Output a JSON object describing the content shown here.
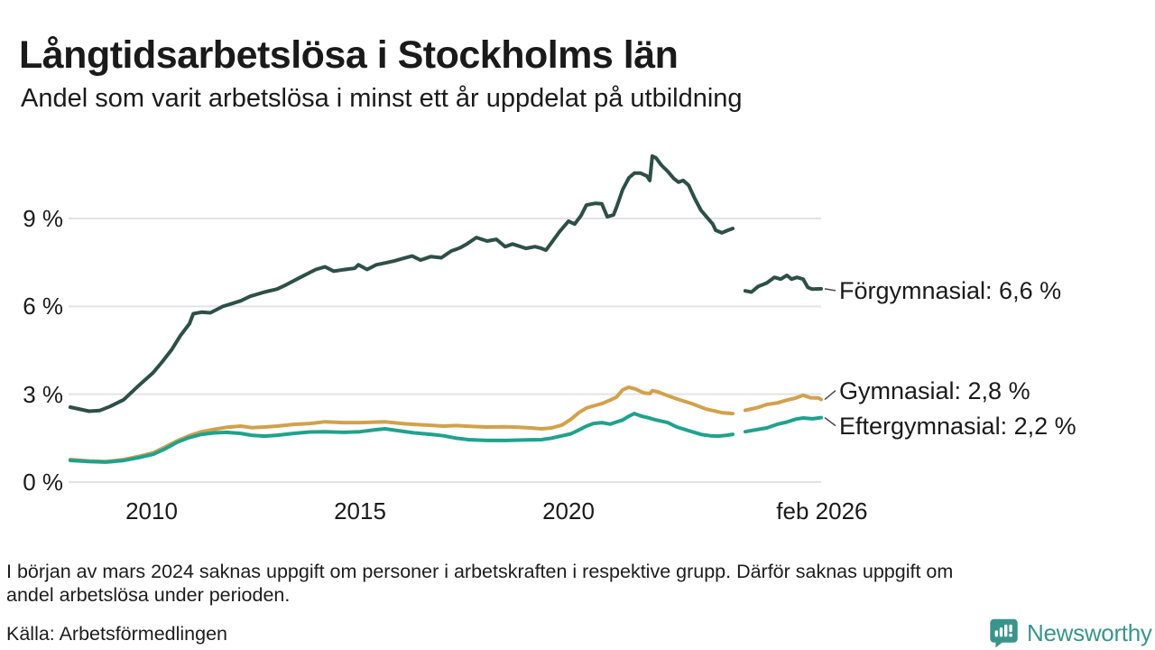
{
  "header": {
    "title": "Långtidsarbetslösa i Stockholms län",
    "subtitle": "Andel som varit arbetslösa i minst ett år uppdelat på utbildning"
  },
  "colors": {
    "grid": "#e3e3e6",
    "connector": "#4a4a4a",
    "text": "#1a1a1a",
    "logo_teal": "#3a948c"
  },
  "chart_data": {
    "type": "line",
    "title": "Långtidsarbetslösa i Stockholms län",
    "subtitle": "Andel som varit arbetslösa i minst ett år uppdelat på utbildning",
    "xlabel": "",
    "ylabel": "",
    "x_range": [
      2008.0,
      2026.08
    ],
    "y_range": [
      0,
      11.5
    ],
    "grid": "horizontal-only",
    "legend_position": "right-end-labels",
    "y_axis": {
      "unit": "%",
      "ticks": [
        {
          "value": 0,
          "label": "0 %"
        },
        {
          "value": 3,
          "label": "3 %"
        },
        {
          "value": 6,
          "label": "6 %"
        },
        {
          "value": 9,
          "label": "9 %"
        }
      ]
    },
    "x_axis": {
      "ticks": [
        {
          "value": 2010,
          "label": "2010"
        },
        {
          "value": 2015,
          "label": "2015"
        },
        {
          "value": 2020,
          "label": "2020"
        },
        {
          "value": 2026.08,
          "label": "feb 2026"
        }
      ]
    },
    "gap": {
      "from": 2024.0,
      "to": 2024.2,
      "reason": "data saknas från början av mars 2024"
    },
    "series": [
      {
        "id": "forgymnasial",
        "name": "Förgymnasial",
        "label": "Förgymnasial: 6,6 %",
        "latest_value": "6,6 %",
        "color": "#2d4f47",
        "segments": [
          [
            [
              2008.05,
              2.56
            ],
            [
              2008.3,
              2.48
            ],
            [
              2008.5,
              2.42
            ],
            [
              2008.75,
              2.44
            ],
            [
              2009.0,
              2.58
            ],
            [
              2009.33,
              2.81
            ],
            [
              2009.68,
              3.28
            ],
            [
              2010.04,
              3.74
            ],
            [
              2010.25,
              4.1
            ],
            [
              2010.48,
              4.52
            ],
            [
              2010.69,
              5.0
            ],
            [
              2010.91,
              5.41
            ],
            [
              2011.0,
              5.75
            ],
            [
              2011.2,
              5.8
            ],
            [
              2011.41,
              5.78
            ],
            [
              2011.71,
              6.0
            ],
            [
              2012.14,
              6.19
            ],
            [
              2012.36,
              6.34
            ],
            [
              2012.71,
              6.49
            ],
            [
              2013.01,
              6.59
            ],
            [
              2013.23,
              6.74
            ],
            [
              2013.57,
              6.99
            ],
            [
              2013.94,
              7.26
            ],
            [
              2014.16,
              7.35
            ],
            [
              2014.37,
              7.2
            ],
            [
              2014.59,
              7.25
            ],
            [
              2014.87,
              7.3
            ],
            [
              2014.96,
              7.42
            ],
            [
              2015.17,
              7.26
            ],
            [
              2015.39,
              7.42
            ],
            [
              2015.6,
              7.48
            ],
            [
              2015.82,
              7.55
            ],
            [
              2016.04,
              7.64
            ],
            [
              2016.25,
              7.72
            ],
            [
              2016.45,
              7.58
            ],
            [
              2016.7,
              7.7
            ],
            [
              2016.95,
              7.66
            ],
            [
              2017.19,
              7.89
            ],
            [
              2017.4,
              8.0
            ],
            [
              2017.55,
              8.12
            ],
            [
              2017.79,
              8.35
            ],
            [
              2018.05,
              8.23
            ],
            [
              2018.27,
              8.29
            ],
            [
              2018.48,
              8.04
            ],
            [
              2018.66,
              8.13
            ],
            [
              2018.98,
              7.98
            ],
            [
              2019.2,
              8.04
            ],
            [
              2019.35,
              7.98
            ],
            [
              2019.46,
              7.92
            ],
            [
              2019.57,
              8.13
            ],
            [
              2019.78,
              8.54
            ],
            [
              2020.0,
              8.91
            ],
            [
              2020.15,
              8.81
            ],
            [
              2020.3,
              9.1
            ],
            [
              2020.43,
              9.46
            ],
            [
              2020.65,
              9.52
            ],
            [
              2020.8,
              9.5
            ],
            [
              2020.93,
              9.06
            ],
            [
              2021.08,
              9.12
            ],
            [
              2021.15,
              9.37
            ],
            [
              2021.3,
              9.99
            ],
            [
              2021.45,
              10.39
            ],
            [
              2021.58,
              10.55
            ],
            [
              2021.73,
              10.55
            ],
            [
              2021.88,
              10.45
            ],
            [
              2021.95,
              10.3
            ],
            [
              2022.01,
              11.13
            ],
            [
              2022.1,
              11.07
            ],
            [
              2022.23,
              10.82
            ],
            [
              2022.38,
              10.61
            ],
            [
              2022.53,
              10.36
            ],
            [
              2022.64,
              10.24
            ],
            [
              2022.75,
              10.3
            ],
            [
              2022.88,
              10.14
            ],
            [
              2023.03,
              9.68
            ],
            [
              2023.18,
              9.28
            ],
            [
              2023.31,
              9.06
            ],
            [
              2023.46,
              8.81
            ],
            [
              2023.53,
              8.6
            ],
            [
              2023.68,
              8.51
            ],
            [
              2023.83,
              8.6
            ],
            [
              2023.94,
              8.66
            ]
          ],
          [
            [
              2024.24,
              6.53
            ],
            [
              2024.39,
              6.49
            ],
            [
              2024.55,
              6.68
            ],
            [
              2024.76,
              6.8
            ],
            [
              2024.94,
              6.99
            ],
            [
              2025.09,
              6.93
            ],
            [
              2025.24,
              7.06
            ],
            [
              2025.35,
              6.93
            ],
            [
              2025.48,
              6.99
            ],
            [
              2025.63,
              6.93
            ],
            [
              2025.74,
              6.65
            ],
            [
              2025.84,
              6.59
            ],
            [
              2026.06,
              6.6
            ]
          ]
        ]
      },
      {
        "id": "gymnasial",
        "name": "Gymnasial",
        "label": "Gymnasial: 2,8 %",
        "latest_value": "2,8 %",
        "color": "#d2a14b",
        "segments": [
          [
            [
              2008.05,
              0.77
            ],
            [
              2008.5,
              0.72
            ],
            [
              2008.9,
              0.7
            ],
            [
              2009.3,
              0.76
            ],
            [
              2009.7,
              0.88
            ],
            [
              2010.04,
              1.0
            ],
            [
              2010.3,
              1.18
            ],
            [
              2010.6,
              1.4
            ],
            [
              2010.9,
              1.58
            ],
            [
              2011.2,
              1.72
            ],
            [
              2011.5,
              1.8
            ],
            [
              2011.8,
              1.87
            ],
            [
              2012.14,
              1.91
            ],
            [
              2012.4,
              1.86
            ],
            [
              2012.71,
              1.88
            ],
            [
              2013.01,
              1.91
            ],
            [
              2013.4,
              1.97
            ],
            [
              2013.8,
              2.0
            ],
            [
              2014.16,
              2.06
            ],
            [
              2014.6,
              2.03
            ],
            [
              2015.0,
              2.03
            ],
            [
              2015.6,
              2.06
            ],
            [
              2016.0,
              2.0
            ],
            [
              2016.3,
              1.97
            ],
            [
              2016.7,
              1.94
            ],
            [
              2017.0,
              1.91
            ],
            [
              2017.3,
              1.93
            ],
            [
              2017.7,
              1.9
            ],
            [
              2018.05,
              1.88
            ],
            [
              2018.48,
              1.89
            ],
            [
              2018.8,
              1.87
            ],
            [
              2019.1,
              1.85
            ],
            [
              2019.35,
              1.82
            ],
            [
              2019.6,
              1.85
            ],
            [
              2019.85,
              1.95
            ],
            [
              2020.06,
              2.15
            ],
            [
              2020.25,
              2.37
            ],
            [
              2020.43,
              2.53
            ],
            [
              2020.65,
              2.62
            ],
            [
              2020.8,
              2.68
            ],
            [
              2021.0,
              2.8
            ],
            [
              2021.15,
              2.9
            ],
            [
              2021.3,
              3.15
            ],
            [
              2021.45,
              3.24
            ],
            [
              2021.6,
              3.18
            ],
            [
              2021.8,
              3.05
            ],
            [
              2021.95,
              3.02
            ],
            [
              2022.01,
              3.12
            ],
            [
              2022.15,
              3.08
            ],
            [
              2022.38,
              2.95
            ],
            [
              2022.6,
              2.84
            ],
            [
              2022.96,
              2.68
            ],
            [
              2023.31,
              2.49
            ],
            [
              2023.68,
              2.37
            ],
            [
              2023.94,
              2.34
            ]
          ],
          [
            [
              2024.24,
              2.45
            ],
            [
              2024.55,
              2.55
            ],
            [
              2024.76,
              2.65
            ],
            [
              2025.0,
              2.7
            ],
            [
              2025.24,
              2.8
            ],
            [
              2025.45,
              2.87
            ],
            [
              2025.63,
              2.97
            ],
            [
              2025.8,
              2.88
            ],
            [
              2026.0,
              2.87
            ],
            [
              2026.06,
              2.82
            ]
          ]
        ]
      },
      {
        "id": "eftergymnasial",
        "name": "Eftergymnasial",
        "label": "Eftergymnasial: 2,2 %",
        "latest_value": "2,2 %",
        "color": "#1fa28e",
        "segments": [
          [
            [
              2008.05,
              0.74
            ],
            [
              2008.5,
              0.7
            ],
            [
              2008.9,
              0.68
            ],
            [
              2009.3,
              0.73
            ],
            [
              2009.7,
              0.84
            ],
            [
              2010.04,
              0.95
            ],
            [
              2010.3,
              1.12
            ],
            [
              2010.6,
              1.35
            ],
            [
              2010.9,
              1.52
            ],
            [
              2011.2,
              1.63
            ],
            [
              2011.5,
              1.68
            ],
            [
              2011.8,
              1.7
            ],
            [
              2012.14,
              1.66
            ],
            [
              2012.4,
              1.6
            ],
            [
              2012.71,
              1.57
            ],
            [
              2013.01,
              1.6
            ],
            [
              2013.4,
              1.66
            ],
            [
              2013.8,
              1.71
            ],
            [
              2014.16,
              1.72
            ],
            [
              2014.6,
              1.7
            ],
            [
              2015.0,
              1.72
            ],
            [
              2015.4,
              1.79
            ],
            [
              2015.6,
              1.82
            ],
            [
              2016.0,
              1.74
            ],
            [
              2016.3,
              1.68
            ],
            [
              2016.7,
              1.63
            ],
            [
              2017.0,
              1.58
            ],
            [
              2017.3,
              1.5
            ],
            [
              2017.6,
              1.45
            ],
            [
              2018.05,
              1.42
            ],
            [
              2018.5,
              1.42
            ],
            [
              2019.0,
              1.44
            ],
            [
              2019.35,
              1.45
            ],
            [
              2019.6,
              1.5
            ],
            [
              2019.85,
              1.58
            ],
            [
              2020.06,
              1.65
            ],
            [
              2020.25,
              1.78
            ],
            [
              2020.43,
              1.91
            ],
            [
              2020.6,
              2.0
            ],
            [
              2020.8,
              2.03
            ],
            [
              2021.0,
              1.98
            ],
            [
              2021.15,
              2.05
            ],
            [
              2021.3,
              2.12
            ],
            [
              2021.45,
              2.25
            ],
            [
              2021.58,
              2.34
            ],
            [
              2021.75,
              2.25
            ],
            [
              2021.9,
              2.2
            ],
            [
              2022.1,
              2.12
            ],
            [
              2022.38,
              2.03
            ],
            [
              2022.6,
              1.88
            ],
            [
              2022.96,
              1.72
            ],
            [
              2023.2,
              1.62
            ],
            [
              2023.4,
              1.58
            ],
            [
              2023.6,
              1.57
            ],
            [
              2023.8,
              1.6
            ],
            [
              2023.94,
              1.63
            ]
          ],
          [
            [
              2024.24,
              1.72
            ],
            [
              2024.55,
              1.8
            ],
            [
              2024.76,
              1.85
            ],
            [
              2025.0,
              1.97
            ],
            [
              2025.24,
              2.05
            ],
            [
              2025.45,
              2.15
            ],
            [
              2025.63,
              2.19
            ],
            [
              2025.85,
              2.16
            ],
            [
              2026.06,
              2.2
            ]
          ]
        ]
      }
    ]
  },
  "footnote": {
    "line1": "I början av mars 2024 saknas uppgift om personer i arbetskraften i respektive grupp. Därför saknas uppgift om",
    "line2": "andel arbetslösa under perioden."
  },
  "source": "Källa: Arbetsförmedlingen",
  "logo": {
    "text": "Newsworthy"
  }
}
